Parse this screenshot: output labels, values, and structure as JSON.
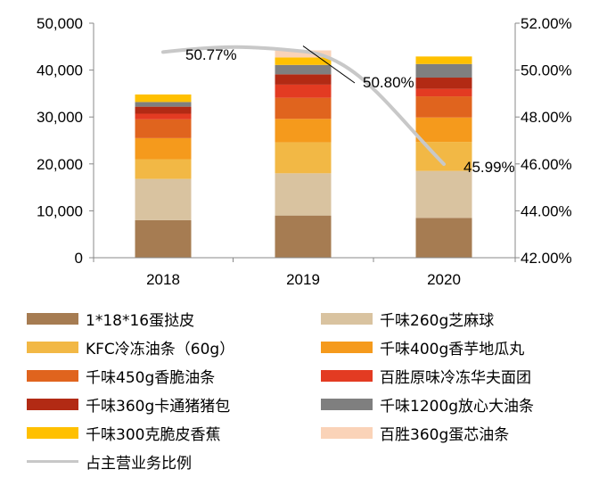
{
  "chart_data": {
    "type": "bar",
    "stacked": true,
    "categories": [
      "2018",
      "2019",
      "2020"
    ],
    "y_left": {
      "min": 0,
      "max": 50000,
      "ticks": [
        "0",
        "10,000",
        "20,000",
        "30,000",
        "40,000",
        "50,000"
      ]
    },
    "y_right": {
      "min": 42,
      "max": 52,
      "ticks": [
        "42.00%",
        "44.00%",
        "46.00%",
        "48.00%",
        "50.00%",
        "52.00%"
      ]
    },
    "series": [
      {
        "name": "1*18*16蛋挞皮",
        "color": "#a67c52",
        "values": [
          8000,
          9000,
          8500
        ]
      },
      {
        "name": "千味260g芝麻球",
        "color": "#d9c3a0",
        "values": [
          8800,
          9000,
          10000
        ]
      },
      {
        "name": "KFC冷冻油条（60g）",
        "color": "#f2b845",
        "values": [
          4200,
          6600,
          6200
        ]
      },
      {
        "name": "千味400g香芋地瓜丸",
        "color": "#f59a1c",
        "values": [
          4500,
          5000,
          5200
        ]
      },
      {
        "name": "千味450g香脆油条",
        "color": "#e0641e",
        "values": [
          4000,
          4500,
          4500
        ]
      },
      {
        "name": "百胜原味冷冻华夫面团",
        "color": "#e33b22",
        "values": [
          1200,
          2800,
          1600
        ]
      },
      {
        "name": "千味360g卡通猪猪包",
        "color": "#b22a14",
        "values": [
          1500,
          2200,
          2400
        ]
      },
      {
        "name": "千味1200g放心大油条",
        "color": "#7f7f7f",
        "values": [
          1000,
          2000,
          2900
        ]
      },
      {
        "name": "千味300克脆皮香蕉",
        "color": "#ffc000",
        "values": [
          1600,
          1600,
          1600
        ]
      },
      {
        "name": "百胜360g蛋芯油条",
        "color": "#fad3b8",
        "values": [
          0,
          1500,
          0
        ]
      }
    ],
    "line": {
      "name": "占主营业务比例",
      "color": "#c8c8c8",
      "values": [
        50.77,
        50.8,
        45.99
      ],
      "labels": [
        "50.77%",
        "50.80%",
        "45.99%"
      ]
    }
  }
}
